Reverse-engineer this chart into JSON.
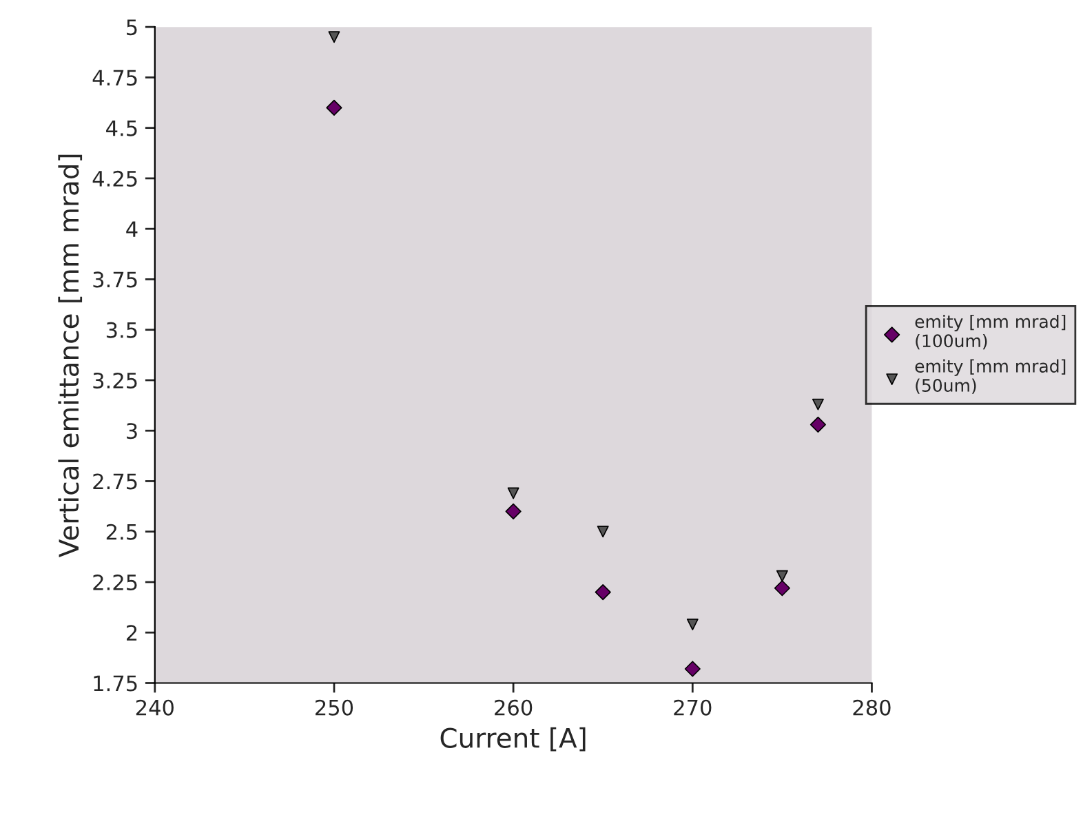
{
  "chart_data": {
    "type": "scatter",
    "xlabel": "Current [A]",
    "ylabel": "Vertical emittance [mm mrad]",
    "xlim": [
      240,
      280
    ],
    "xticks": [
      240,
      250,
      260,
      270,
      280
    ],
    "ylim": [
      1.75,
      5
    ],
    "yticks": [
      1.75,
      2,
      2.25,
      2.5,
      2.75,
      3,
      3.25,
      3.5,
      3.75,
      4,
      4.25,
      4.5,
      4.75,
      5
    ],
    "grid": false,
    "legend": "right",
    "series": [
      {
        "name": "emity [mm mrad]\n(100um)",
        "color": "#660066",
        "marker": "diamond",
        "x": [
          250,
          260,
          265,
          270,
          275,
          277
        ],
        "values": [
          4.6,
          2.6,
          2.2,
          1.82,
          2.22,
          3.03
        ]
      },
      {
        "name": "emity [mm mrad]\n(50um)",
        "color": "#555555",
        "marker": "triangle",
        "x": [
          250,
          260,
          265,
          270,
          275,
          277
        ],
        "values": [
          4.95,
          2.69,
          2.5,
          2.04,
          2.28,
          3.13
        ]
      }
    ]
  }
}
